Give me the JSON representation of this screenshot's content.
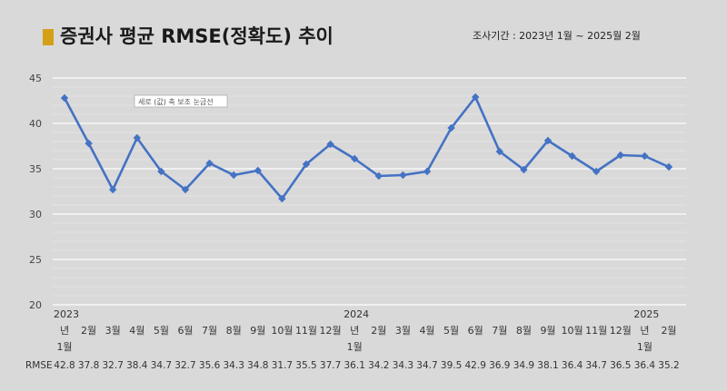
{
  "title": "증권사 평균 RMSE(정확도) 추이",
  "subtitle": "조사기간 : 2023년 1월 ~ 2025월 2월",
  "colors": {
    "line": "#4472c4",
    "title_marker": "#d4a017",
    "background": "#d9d9d9",
    "grid": "#ffffff"
  },
  "chart_data": {
    "type": "line",
    "title": "증권사 평균 RMSE(정확도) 추이",
    "ylim": [
      20,
      45
    ],
    "yticks": [
      20,
      25,
      30,
      35,
      40,
      45
    ],
    "grid": true,
    "x": [
      "2023-01",
      "2023-02",
      "2023-03",
      "2023-04",
      "2023-05",
      "2023-06",
      "2023-07",
      "2023-08",
      "2023-09",
      "2023-10",
      "2023-11",
      "2023-12",
      "2024-01",
      "2024-02",
      "2024-03",
      "2024-04",
      "2024-05",
      "2024-06",
      "2024-07",
      "2024-08",
      "2024-09",
      "2024-10",
      "2024-11",
      "2024-12",
      "2025-01",
      "2025-02"
    ],
    "month_labels": [
      "년1월",
      "2월",
      "3월",
      "4월",
      "5월",
      "6월",
      "7월",
      "8월",
      "9월",
      "10월",
      "11월",
      "12월",
      "년1월",
      "2월",
      "3월",
      "4월",
      "5월",
      "6월",
      "7월",
      "8월",
      "9월",
      "10월",
      "11월",
      "12월",
      "년1월",
      "2월"
    ],
    "year_labels": [
      {
        "index": 0,
        "label": "2023"
      },
      {
        "index": 12,
        "label": "2024"
      },
      {
        "index": 24,
        "label": "2025"
      }
    ],
    "series": [
      {
        "name": "RMSE",
        "values": [
          42.8,
          37.8,
          32.7,
          38.4,
          34.7,
          32.7,
          35.6,
          34.3,
          34.8,
          31.7,
          35.5,
          37.7,
          36.1,
          34.2,
          34.3,
          34.7,
          39.5,
          42.9,
          36.9,
          34.9,
          38.1,
          36.4,
          34.7,
          36.5,
          36.4,
          35.2
        ]
      }
    ],
    "annotations": [
      "세로 (값) 축 보조 눈금선"
    ]
  }
}
